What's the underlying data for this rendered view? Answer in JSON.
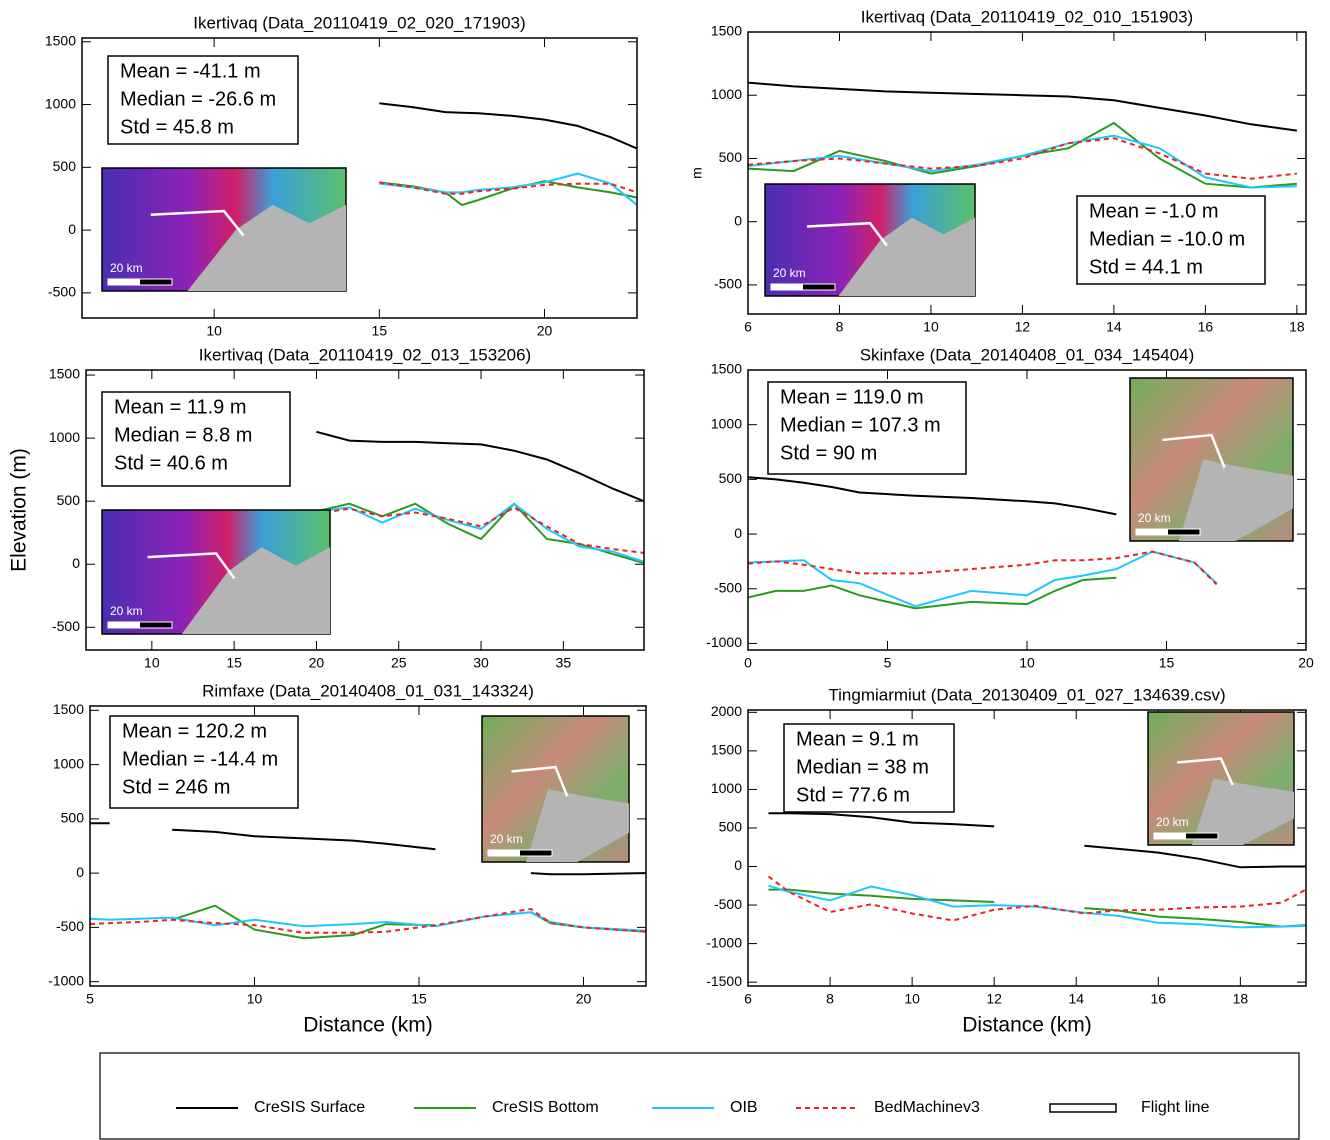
{
  "chart_data": [
    {
      "type": "line",
      "title": "Ikertivaq (Data_20110419_02_020_171903)",
      "annotations": [
        "Mean = -41.1 m",
        "Median = -26.6 m",
        "Std = 45.8 m"
      ],
      "inset_scale": "20 km",
      "xlim": [
        6,
        22.8
      ],
      "ylim": [
        -700,
        1530
      ],
      "xticks": [
        10,
        15,
        20
      ],
      "yticks": [
        -500,
        0,
        500,
        1000,
        1500
      ],
      "x": [
        15,
        16,
        17,
        17.5,
        18,
        19,
        20,
        21,
        22,
        22.8
      ],
      "series": [
        {
          "name": "CreSIS Surface",
          "color": "#000000",
          "values": [
            1010,
            980,
            940,
            935,
            930,
            910,
            880,
            830,
            740,
            650
          ]
        },
        {
          "name": "CreSIS Bottom",
          "color": "#2a9a1e",
          "values": [
            380,
            350,
            300,
            200,
            240,
            330,
            390,
            340,
            300,
            260
          ]
        },
        {
          "name": "OIB",
          "color": "#1ec8ff",
          "values": [
            370,
            340,
            300,
            300,
            320,
            340,
            380,
            450,
            370,
            200
          ]
        },
        {
          "name": "BedMachinev3",
          "color": "#ee2222",
          "dashed": true,
          "values": [
            380,
            340,
            290,
            290,
            310,
            330,
            360,
            370,
            370,
            300
          ]
        }
      ]
    },
    {
      "type": "line",
      "title": "Ikertivaq (Data_20110419_02_010_151903)",
      "ylabel": "m",
      "annotations": [
        "Mean = -1.0 m",
        "Median = -10.0 m",
        "Std = 44.1 m"
      ],
      "inset_scale": "20 km",
      "xlim": [
        6,
        18.2
      ],
      "ylim": [
        -730,
        1500
      ],
      "xticks": [
        6,
        8,
        10,
        12,
        14,
        16,
        18
      ],
      "yticks": [
        -500,
        0,
        500,
        1000,
        1500
      ],
      "x": [
        6,
        7,
        8,
        9,
        10,
        11,
        12,
        13,
        14,
        15,
        16,
        17,
        18
      ],
      "series": [
        {
          "name": "CreSIS Surface",
          "color": "#000000",
          "values": [
            1100,
            1070,
            1050,
            1030,
            1020,
            1010,
            1000,
            990,
            960,
            900,
            840,
            770,
            720
          ]
        },
        {
          "name": "CreSIS Bottom",
          "color": "#2a9a1e",
          "values": [
            420,
            400,
            560,
            480,
            380,
            440,
            520,
            580,
            780,
            500,
            300,
            270,
            300
          ]
        },
        {
          "name": "OIB",
          "color": "#1ec8ff",
          "values": [
            440,
            480,
            520,
            460,
            400,
            450,
            520,
            620,
            680,
            580,
            350,
            270,
            280
          ]
        },
        {
          "name": "BedMachinev3",
          "color": "#ee2222",
          "dashed": true,
          "values": [
            450,
            480,
            500,
            460,
            420,
            440,
            500,
            620,
            660,
            540,
            380,
            340,
            380
          ]
        }
      ]
    },
    {
      "type": "line",
      "title": "Ikertivaq (Data_20110419_02_013_153206)",
      "ylabel": "Elevation (m)",
      "annotations": [
        "Mean = 11.9 m",
        "Median = 8.8 m",
        "Std = 40.6 m"
      ],
      "inset_scale": "20 km",
      "xlim": [
        6,
        39.9
      ],
      "ylim": [
        -680,
        1540
      ],
      "xticks": [
        10,
        15,
        20,
        25,
        30,
        35
      ],
      "yticks": [
        -500,
        0,
        500,
        1000,
        1500
      ],
      "x": [
        20,
        22,
        24,
        26,
        28,
        30,
        32,
        34,
        36,
        38,
        39.9
      ],
      "series": [
        {
          "name": "CreSIS Surface",
          "color": "#000000",
          "values": [
            1050,
            980,
            970,
            970,
            960,
            950,
            900,
            830,
            720,
            600,
            500
          ]
        },
        {
          "name": "CreSIS Bottom",
          "color": "#2a9a1e",
          "values": [
            420,
            480,
            380,
            480,
            320,
            200,
            480,
            200,
            160,
            80,
            10
          ]
        },
        {
          "name": "OIB",
          "color": "#1ec8ff",
          "values": [
            420,
            450,
            330,
            440,
            350,
            280,
            480,
            280,
            140,
            100,
            20
          ]
        },
        {
          "name": "BedMachinev3",
          "color": "#ee2222",
          "dashed": true,
          "values": [
            400,
            440,
            380,
            410,
            360,
            300,
            450,
            300,
            160,
            120,
            90
          ]
        }
      ]
    },
    {
      "type": "line",
      "title": "Skinfaxe (Data_20140408_01_034_145404)",
      "annotations": [
        "Mean = 119.0 m",
        "Median = 107.3 m",
        "Std = 90 m"
      ],
      "inset_scale": "20 km",
      "xlim": [
        0,
        20
      ],
      "ylim": [
        -1060,
        1500
      ],
      "xticks": [
        0,
        5,
        10,
        15,
        20
      ],
      "yticks": [
        -1000,
        -500,
        0,
        500,
        1000,
        1500
      ],
      "x": [
        0,
        1,
        2,
        3,
        4,
        6,
        8,
        10,
        11,
        12,
        13.2,
        14.5,
        16,
        16.8
      ],
      "series": [
        {
          "name": "CreSIS Surface",
          "color": "#000000",
          "values": [
            520,
            500,
            470,
            430,
            380,
            350,
            330,
            300,
            280,
            240,
            180,
            null,
            null,
            null
          ]
        },
        {
          "name": "CreSIS Bottom",
          "color": "#2a9a1e",
          "values": [
            -580,
            -520,
            -520,
            -470,
            -560,
            -680,
            -620,
            -640,
            -520,
            -420,
            -400,
            null,
            null,
            null
          ]
        },
        {
          "name": "OIB",
          "color": "#1ec8ff",
          "values": [
            -260,
            -250,
            -240,
            -420,
            -450,
            -660,
            -520,
            -560,
            -420,
            -380,
            -320,
            -160,
            -260,
            -450
          ]
        },
        {
          "name": "BedMachinev3",
          "color": "#ee2222",
          "dashed": true,
          "values": [
            -270,
            -250,
            -280,
            -320,
            -360,
            -360,
            -320,
            -280,
            -240,
            -240,
            -220,
            -160,
            -260,
            -460
          ]
        }
      ]
    },
    {
      "type": "line",
      "title": "Rimfaxe (Data_20140408_01_031_143324)",
      "xlabel": "Distance (km)",
      "annotations": [
        "Mean = 120.2 m",
        "Median = -14.4 m",
        "Std = 246 m"
      ],
      "inset_scale": "20 km",
      "xlim": [
        5,
        21.9
      ],
      "ylim": [
        -1040,
        1540
      ],
      "xticks": [
        5,
        10,
        15,
        20
      ],
      "yticks": [
        -1000,
        -500,
        0,
        500,
        1000,
        1500
      ],
      "x": [
        5,
        5.6,
        6.5,
        7.5,
        8.8,
        10,
        11.5,
        13,
        14,
        15.5,
        17,
        18.4,
        19,
        20,
        21.9
      ],
      "series": [
        {
          "name": "CreSIS Surface",
          "color": "#000000",
          "values": [
            460,
            460,
            null,
            400,
            380,
            340,
            320,
            300,
            270,
            220,
            null,
            0,
            -10,
            -10,
            0
          ]
        },
        {
          "name": "CreSIS Bottom",
          "color": "#2a9a1e",
          "values": [
            null,
            null,
            null,
            -430,
            -300,
            -520,
            -600,
            -570,
            -470,
            -480,
            null,
            -360,
            -460,
            -500,
            -540
          ]
        },
        {
          "name": "OIB",
          "color": "#1ec8ff",
          "values": [
            -420,
            -430,
            -420,
            -410,
            -480,
            -430,
            -490,
            -470,
            -450,
            -490,
            -400,
            -360,
            -450,
            -500,
            -530
          ]
        },
        {
          "name": "BedMachinev3",
          "color": "#ee2222",
          "dashed": true,
          "values": [
            -470,
            -460,
            -450,
            -430,
            -460,
            -480,
            -550,
            -550,
            -540,
            -480,
            -400,
            -330,
            -460,
            -500,
            -540
          ]
        }
      ]
    },
    {
      "type": "line",
      "title": "Tingmiarmiut (Data_20130409_01_027_134639.csv)",
      "xlabel": "Distance (km)",
      "annotations": [
        "Mean = 9.1 m",
        "Median = 38 m",
        "Std = 77.6 m"
      ],
      "inset_scale": "20 km",
      "xlim": [
        6,
        19.6
      ],
      "ylim": [
        -1550,
        2030
      ],
      "xticks": [
        6,
        8,
        10,
        12,
        14,
        16,
        18
      ],
      "yticks": [
        -1500,
        -1000,
        -500,
        0,
        500,
        1000,
        1500,
        2000
      ],
      "x": [
        6.5,
        7,
        8,
        9,
        10,
        11,
        12,
        13,
        14.2,
        15,
        16,
        17,
        18,
        19,
        19.6
      ],
      "series": [
        {
          "name": "CreSIS Surface",
          "color": "#000000",
          "values": [
            690,
            690,
            680,
            640,
            570,
            550,
            520,
            null,
            270,
            230,
            180,
            100,
            -10,
            0,
            0
          ]
        },
        {
          "name": "CreSIS Bottom",
          "color": "#2a9a1e",
          "values": [
            -300,
            -300,
            -350,
            -380,
            -420,
            -440,
            -460,
            null,
            -540,
            -570,
            -650,
            -680,
            -720,
            -780,
            -760
          ]
        },
        {
          "name": "OIB",
          "color": "#1ec8ff",
          "values": [
            -250,
            -330,
            -440,
            -260,
            -370,
            -520,
            -500,
            -520,
            -600,
            -640,
            -730,
            -750,
            -790,
            -780,
            -770
          ]
        },
        {
          "name": "BedMachinev3",
          "color": "#ee2222",
          "dashed": true,
          "values": [
            -130,
            -330,
            -590,
            -490,
            -610,
            -700,
            -560,
            -510,
            -610,
            -570,
            -560,
            -530,
            -520,
            -470,
            -300
          ]
        }
      ]
    }
  ],
  "flight_line_label": "Flight line"
}
